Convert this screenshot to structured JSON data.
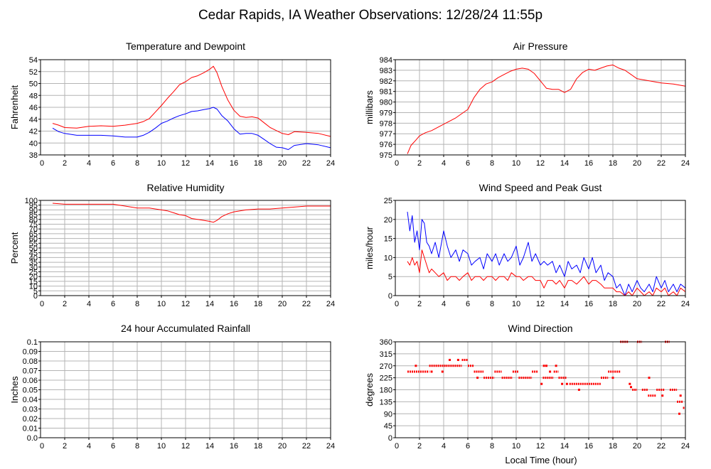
{
  "page": {
    "title": "Cedar Rapids, IA Weather Observations: 12/28/24 11:55p",
    "x_axis_title": "Local Time (hour)"
  },
  "colors": {
    "series_red": "#ff0000",
    "series_blue": "#0000ff",
    "grid": "#b4b4b4",
    "frame": "#000000"
  },
  "chart_data": [
    {
      "id": "temperature",
      "type": "line",
      "title": "Temperature and Dewpoint",
      "xlabel": "",
      "ylabel": "Fahrenheit",
      "xlim": [
        0,
        24
      ],
      "ylim": [
        38,
        54
      ],
      "xticks": [
        2,
        4,
        6,
        8,
        10,
        12,
        14,
        16,
        18,
        20,
        22,
        24
      ],
      "yticks": [
        38,
        40,
        42,
        44,
        46,
        48,
        50,
        52,
        54
      ],
      "grid": true,
      "series": [
        {
          "color": "#ff0000",
          "x": [
            1,
            1.5,
            2,
            3,
            4,
            5,
            6,
            7,
            8,
            8.5,
            9,
            9.5,
            10,
            10.5,
            11,
            11.5,
            12,
            12.5,
            13,
            13.5,
            14,
            14.3,
            14.6,
            15,
            15.5,
            16,
            16.5,
            17,
            17.5,
            18,
            18.5,
            19,
            19.5,
            20,
            20.5,
            21,
            22,
            23,
            24
          ],
          "values": [
            43.3,
            43.0,
            42.6,
            42.5,
            42.8,
            42.9,
            42.8,
            43.0,
            43.3,
            43.6,
            44.1,
            45.2,
            46.3,
            47.5,
            48.6,
            49.8,
            50.3,
            51.0,
            51.3,
            51.8,
            52.4,
            52.9,
            51.8,
            49.5,
            47.2,
            45.5,
            44.5,
            44.3,
            44.4,
            44.2,
            43.4,
            42.6,
            42.1,
            41.6,
            41.4,
            41.9,
            41.8,
            41.6,
            41.1
          ]
        },
        {
          "color": "#0000ff",
          "x": [
            1,
            1.5,
            2,
            3,
            4,
            5,
            6,
            7,
            8,
            8.5,
            9,
            9.5,
            10,
            10.5,
            11,
            11.5,
            12,
            12.5,
            13,
            13.5,
            14,
            14.3,
            14.6,
            15,
            15.5,
            16,
            16.5,
            17,
            17.5,
            18,
            18.5,
            19,
            19.5,
            20,
            20.5,
            21,
            22,
            23,
            24
          ],
          "values": [
            42.5,
            41.9,
            41.6,
            41.3,
            41.3,
            41.3,
            41.2,
            41.0,
            41.0,
            41.3,
            41.8,
            42.5,
            43.3,
            43.7,
            44.2,
            44.6,
            44.9,
            45.3,
            45.4,
            45.6,
            45.8,
            46.0,
            45.7,
            44.6,
            43.7,
            42.4,
            41.5,
            41.6,
            41.6,
            41.3,
            40.6,
            39.9,
            39.3,
            39.2,
            38.9,
            39.6,
            39.9,
            39.7,
            39.2
          ]
        }
      ]
    },
    {
      "id": "pressure",
      "type": "line",
      "title": "Air Pressure",
      "xlabel": "",
      "ylabel": "millibars",
      "xlim": [
        0,
        24
      ],
      "ylim": [
        975,
        984
      ],
      "xticks": [
        2,
        4,
        6,
        8,
        10,
        12,
        14,
        16,
        18,
        20,
        22,
        24
      ],
      "yticks": [
        975,
        976,
        977,
        978,
        979,
        980,
        981,
        982,
        983,
        984
      ],
      "grid": true,
      "series": [
        {
          "color": "#ff0000",
          "x": [
            1,
            1.3,
            1.7,
            2,
            2.5,
            3,
            4,
            5,
            5.5,
            6,
            6.5,
            7,
            7.5,
            8,
            8.5,
            9,
            9.5,
            10,
            10.5,
            11,
            11.5,
            12,
            12.5,
            13,
            13.5,
            14,
            14.5,
            15,
            15.5,
            16,
            16.5,
            17,
            17.5,
            18,
            18.5,
            19,
            19.5,
            20,
            21,
            22,
            23,
            24
          ],
          "values": [
            975.1,
            975.9,
            976.4,
            976.8,
            977.1,
            977.3,
            977.9,
            978.5,
            978.9,
            979.3,
            980.4,
            981.2,
            981.7,
            981.9,
            982.3,
            982.6,
            982.9,
            983.1,
            983.2,
            983.1,
            982.7,
            982.0,
            981.3,
            981.2,
            981.2,
            980.9,
            981.2,
            982.2,
            982.8,
            983.1,
            983.0,
            983.2,
            983.4,
            983.5,
            983.2,
            983.0,
            982.6,
            982.2,
            982.0,
            981.8,
            981.7,
            981.5
          ]
        }
      ]
    },
    {
      "id": "humidity",
      "type": "line",
      "title": "Relative Humidity",
      "xlabel": "",
      "ylabel": "Percent",
      "xlim": [
        0,
        24
      ],
      "ylim": [
        0,
        100
      ],
      "xticks": [
        2,
        4,
        6,
        8,
        10,
        12,
        14,
        16,
        18,
        20,
        22,
        24
      ],
      "yticks": [
        0,
        5,
        10,
        15,
        20,
        25,
        30,
        35,
        40,
        45,
        50,
        55,
        60,
        65,
        70,
        75,
        80,
        85,
        90,
        95,
        100
      ],
      "ytick_labels_shown": [
        0,
        10,
        20,
        30,
        40,
        50,
        60,
        70,
        80,
        90,
        100
      ],
      "grid": true,
      "series": [
        {
          "color": "#ff0000",
          "x": [
            1,
            2,
            3,
            4,
            5,
            6,
            7,
            8,
            9,
            10,
            10.5,
            11,
            11.5,
            12,
            12.5,
            13,
            13.5,
            14,
            14.3,
            14.6,
            15,
            15.5,
            16,
            17,
            18,
            19,
            20,
            21,
            22,
            23,
            24
          ],
          "values": [
            97,
            96,
            96,
            96,
            96,
            96,
            94,
            92,
            92,
            90,
            89,
            87,
            85,
            84,
            81,
            80,
            79,
            78,
            77,
            79,
            83,
            86,
            88,
            90,
            91,
            91,
            92,
            93,
            94,
            94,
            94
          ]
        }
      ]
    },
    {
      "id": "wind-speed",
      "type": "line",
      "title": "Wind Speed and Peak Gust",
      "xlabel": "",
      "ylabel": "miles/hour",
      "xlim": [
        0,
        24
      ],
      "ylim": [
        0,
        25
      ],
      "xticks": [
        2,
        4,
        6,
        8,
        10,
        12,
        14,
        16,
        18,
        20,
        22,
        24
      ],
      "yticks": [
        0,
        5,
        10,
        15,
        20,
        25
      ],
      "grid": true,
      "series": [
        {
          "color": "#0000ff",
          "x": [
            1,
            1.2,
            1.4,
            1.6,
            1.8,
            2.0,
            2.2,
            2.4,
            2.6,
            2.8,
            3.0,
            3.3,
            3.6,
            4.0,
            4.3,
            4.6,
            5.0,
            5.3,
            5.6,
            6.0,
            6.3,
            6.6,
            7.0,
            7.3,
            7.6,
            8.0,
            8.3,
            8.6,
            9.0,
            9.3,
            9.6,
            10.0,
            10.3,
            10.6,
            11.0,
            11.3,
            11.6,
            12.0,
            12.3,
            12.6,
            13.0,
            13.3,
            13.6,
            14.0,
            14.3,
            14.6,
            15.0,
            15.3,
            15.6,
            16.0,
            16.3,
            16.6,
            17.0,
            17.3,
            17.6,
            18.0,
            18.3,
            18.6,
            19.0,
            19.3,
            19.6,
            20.0,
            20.3,
            20.6,
            21.0,
            21.3,
            21.6,
            22.0,
            22.3,
            22.6,
            23.0,
            23.3,
            23.6,
            24.0
          ],
          "values": [
            22,
            17,
            21,
            14,
            17,
            12,
            20,
            19,
            14,
            13,
            11,
            14,
            10,
            17,
            13,
            10,
            12,
            9,
            12,
            11,
            8,
            9,
            10,
            7,
            11,
            9,
            11,
            8,
            11,
            9,
            10,
            13,
            8,
            10,
            14,
            9,
            11,
            8,
            9,
            8,
            9,
            6,
            8,
            5,
            9,
            7,
            8,
            6,
            10,
            7,
            10,
            6,
            8,
            4,
            6,
            5,
            2,
            3,
            0,
            3,
            1,
            4,
            2,
            1,
            3,
            1,
            5,
            2,
            4,
            1,
            3,
            1,
            3,
            2
          ]
        },
        {
          "color": "#ff0000",
          "x": [
            1,
            1.2,
            1.4,
            1.6,
            1.8,
            2.0,
            2.2,
            2.4,
            2.6,
            2.8,
            3.0,
            3.3,
            3.6,
            4.0,
            4.3,
            4.6,
            5.0,
            5.3,
            5.6,
            6.0,
            6.3,
            6.6,
            7.0,
            7.3,
            7.6,
            8.0,
            8.3,
            8.6,
            9.0,
            9.3,
            9.6,
            10.0,
            10.3,
            10.6,
            11.0,
            11.3,
            11.6,
            12.0,
            12.3,
            12.6,
            13.0,
            13.3,
            13.6,
            14.0,
            14.3,
            14.6,
            15.0,
            15.3,
            15.6,
            16.0,
            16.3,
            16.6,
            17.0,
            17.3,
            17.6,
            18.0,
            18.3,
            18.6,
            19.0,
            19.3,
            19.6,
            20.0,
            20.3,
            20.6,
            21.0,
            21.3,
            21.6,
            22.0,
            22.3,
            22.6,
            23.0,
            23.3,
            23.6,
            24.0
          ],
          "values": [
            9,
            8,
            10,
            8,
            9,
            6,
            12,
            10,
            8,
            6,
            7,
            6,
            5,
            6,
            4,
            5,
            5,
            4,
            5,
            6,
            4,
            5,
            5,
            4,
            5,
            5,
            4,
            5,
            5,
            4,
            6,
            5,
            5,
            4,
            5,
            5,
            4,
            4,
            2,
            4,
            4,
            3,
            4,
            2,
            4,
            4,
            3,
            4,
            5,
            3,
            4,
            4,
            3,
            2,
            2,
            2,
            1,
            1,
            0,
            1,
            0,
            2,
            1,
            0,
            1,
            0,
            2,
            1,
            2,
            0,
            1,
            0,
            2,
            1
          ]
        }
      ]
    },
    {
      "id": "rainfall",
      "type": "line",
      "title": "24 hour Accumulated Rainfall",
      "xlabel": "",
      "ylabel": "Inches",
      "xlim": [
        0,
        24
      ],
      "ylim": [
        0,
        0.1
      ],
      "xticks": [
        2,
        4,
        6,
        8,
        10,
        12,
        14,
        16,
        18,
        20,
        22,
        24
      ],
      "yticks": [
        0.0,
        0.01,
        0.02,
        0.03,
        0.04,
        0.05,
        0.06,
        0.07,
        0.08,
        0.09,
        0.1
      ],
      "ytick_labels": [
        "0.0",
        "0.01",
        "0.02",
        "0.03",
        "0.04",
        "0.05",
        "0.06",
        "0.07",
        "0.08",
        "0.09",
        "0.1"
      ],
      "grid": true,
      "series": [
        {
          "color": "#ff0000",
          "x": [
            1,
            24
          ],
          "values": [
            0,
            0
          ]
        }
      ]
    },
    {
      "id": "wind-direction",
      "type": "scatter",
      "title": "Wind Direction",
      "xlabel": "Local Time (hour)",
      "ylabel": "degrees",
      "xlim": [
        0,
        24
      ],
      "ylim": [
        0,
        360
      ],
      "xticks": [
        2,
        4,
        6,
        8,
        10,
        12,
        14,
        16,
        18,
        20,
        22,
        24
      ],
      "yticks": [
        0,
        45,
        90,
        135,
        180,
        225,
        270,
        315,
        360
      ],
      "grid": true,
      "segments": [
        {
          "x0": 1.0,
          "x1": 2.8,
          "y": 248
        },
        {
          "x0": 2.8,
          "x1": 4.2,
          "y": 270
        },
        {
          "x0": 4.2,
          "x1": 5.5,
          "y": 270
        },
        {
          "x0": 5.5,
          "x1": 6.0,
          "y": 292
        },
        {
          "x0": 6.0,
          "x1": 6.5,
          "y": 270
        },
        {
          "x0": 6.5,
          "x1": 7.3,
          "y": 248
        },
        {
          "x0": 7.3,
          "x1": 8.2,
          "y": 225
        },
        {
          "x0": 8.2,
          "x1": 8.8,
          "y": 248
        },
        {
          "x0": 8.8,
          "x1": 9.7,
          "y": 225
        },
        {
          "x0": 9.7,
          "x1": 10.2,
          "y": 248
        },
        {
          "x0": 10.2,
          "x1": 11.3,
          "y": 225
        },
        {
          "x0": 11.3,
          "x1": 11.8,
          "y": 248
        },
        {
          "x0": 12.2,
          "x1": 13.1,
          "y": 225
        },
        {
          "x0": 13.1,
          "x1": 13.5,
          "y": 248
        },
        {
          "x0": 13.5,
          "x1": 14.2,
          "y": 225
        },
        {
          "x0": 14.4,
          "x1": 17.0,
          "y": 202
        },
        {
          "x0": 17.0,
          "x1": 17.6,
          "y": 225
        },
        {
          "x0": 17.6,
          "x1": 18.6,
          "y": 248
        },
        {
          "x0": 18.6,
          "x1": 19.3,
          "y": 360
        },
        {
          "x0": 19.6,
          "x1": 20.0,
          "y": 180
        },
        {
          "x0": 20.0,
          "x1": 20.4,
          "y": 360
        },
        {
          "x0": 20.4,
          "x1": 20.9,
          "y": 180
        },
        {
          "x0": 20.9,
          "x1": 21.6,
          "y": 158
        },
        {
          "x0": 21.6,
          "x1": 22.3,
          "y": 180
        },
        {
          "x0": 22.3,
          "x1": 22.7,
          "y": 360
        },
        {
          "x0": 22.7,
          "x1": 23.3,
          "y": 180
        },
        {
          "x0": 23.3,
          "x1": 23.8,
          "y": 135
        },
        {
          "x0": 23.8,
          "x1": 24.0,
          "y": 112
        }
      ],
      "points": [
        {
          "x": 1.7,
          "y": 270
        },
        {
          "x": 3.0,
          "y": 248
        },
        {
          "x": 3.9,
          "y": 248
        },
        {
          "x": 4.5,
          "y": 292
        },
        {
          "x": 5.2,
          "y": 292
        },
        {
          "x": 6.8,
          "y": 225
        },
        {
          "x": 12.1,
          "y": 202
        },
        {
          "x": 12.3,
          "y": 270
        },
        {
          "x": 12.5,
          "y": 270
        },
        {
          "x": 12.8,
          "y": 248
        },
        {
          "x": 13.3,
          "y": 270
        },
        {
          "x": 13.8,
          "y": 202
        },
        {
          "x": 14.2,
          "y": 202
        },
        {
          "x": 15.2,
          "y": 180
        },
        {
          "x": 18.0,
          "y": 225
        },
        {
          "x": 19.4,
          "y": 202
        },
        {
          "x": 19.5,
          "y": 190
        },
        {
          "x": 21.0,
          "y": 225
        },
        {
          "x": 22.1,
          "y": 158
        },
        {
          "x": 23.5,
          "y": 90
        },
        {
          "x": 23.6,
          "y": 158
        }
      ]
    }
  ]
}
